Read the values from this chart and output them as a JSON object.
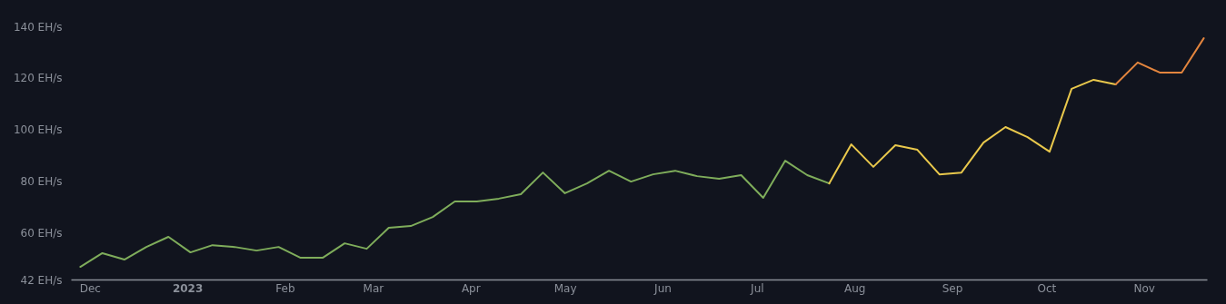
{
  "chart_data": {
    "type": "line",
    "series": [
      {
        "color": "#7fad5b",
        "x": [
          "2022-11-28",
          "2022-12-05",
          "2022-12-12",
          "2022-12-19",
          "2022-12-26",
          "2023-01-02",
          "2023-01-09",
          "2023-01-16",
          "2023-01-23",
          "2023-01-30",
          "2023-02-06",
          "2023-02-13",
          "2023-02-20",
          "2023-02-27",
          "2023-03-06",
          "2023-03-13",
          "2023-03-20",
          "2023-03-27",
          "2023-04-03",
          "2023-04-10",
          "2023-04-17",
          "2023-04-24",
          "2023-05-01",
          "2023-05-08",
          "2023-05-15",
          "2023-05-22",
          "2023-05-29",
          "2023-06-05",
          "2023-06-12",
          "2023-06-19",
          "2023-06-26",
          "2023-07-03",
          "2023-07-10",
          "2023-07-17",
          "2023-07-24"
        ],
        "values": [
          46.9,
          52.2,
          49.7,
          54.6,
          58.5,
          52.5,
          55.3,
          54.6,
          53.2,
          54.6,
          50.4,
          50.4,
          56,
          53.9,
          62,
          62.7,
          66.2,
          72.2,
          72.2,
          73.3,
          75,
          83.4,
          75.4,
          79.2,
          84.1,
          79.9,
          82.7,
          84.1,
          82,
          81,
          82.4,
          73.6,
          88,
          82.4,
          79.2
        ]
      },
      {
        "color": "#e9c84c",
        "x": [
          "2023-07-24",
          "2023-07-31",
          "2023-08-07",
          "2023-08-14",
          "2023-08-21",
          "2023-08-28",
          "2023-09-04",
          "2023-09-11",
          "2023-09-18",
          "2023-09-25",
          "2023-10-02",
          "2023-10-09",
          "2023-10-16",
          "2023-10-23"
        ],
        "values": [
          79.2,
          94.3,
          85.6,
          94,
          92.2,
          82.7,
          83.4,
          95,
          101,
          97.1,
          91.5,
          115.8,
          119.3,
          117.5
        ]
      },
      {
        "color": "#e3853e",
        "x": [
          "2023-10-23",
          "2023-10-30",
          "2023-11-06",
          "2023-11-13",
          "2023-11-20"
        ],
        "values": [
          117.5,
          126,
          122.1,
          122.1,
          135.4
        ]
      }
    ],
    "xlim": [
      "2022-11-25",
      "2023-11-21"
    ],
    "xticks": [
      {
        "value": "2022-12-01",
        "label": "Dec"
      },
      {
        "value": "2023-01-01",
        "label": "2023"
      },
      {
        "value": "2023-02-01",
        "label": "Feb"
      },
      {
        "value": "2023-03-01",
        "label": "Mar"
      },
      {
        "value": "2023-04-01",
        "label": "Apr"
      },
      {
        "value": "2023-05-01",
        "label": "May"
      },
      {
        "value": "2023-06-01",
        "label": "Jun"
      },
      {
        "value": "2023-07-01",
        "label": "Jul"
      },
      {
        "value": "2023-08-01",
        "label": "Aug"
      },
      {
        "value": "2023-09-01",
        "label": "Sep"
      },
      {
        "value": "2023-10-01",
        "label": "Oct"
      },
      {
        "value": "2023-11-01",
        "label": "Nov"
      }
    ],
    "ylim": [
      42,
      140
    ],
    "yticks": [
      {
        "value": 42,
        "label": "42 EH/s"
      },
      {
        "value": 60,
        "label": "60 EH/s"
      },
      {
        "value": 80,
        "label": "80 EH/s"
      },
      {
        "value": 100,
        "label": "100 EH/s"
      },
      {
        "value": 120,
        "label": "120 EH/s"
      },
      {
        "value": 140,
        "label": "140 EH/s"
      }
    ],
    "grid": false,
    "marker": "none",
    "line_style": "solid"
  }
}
